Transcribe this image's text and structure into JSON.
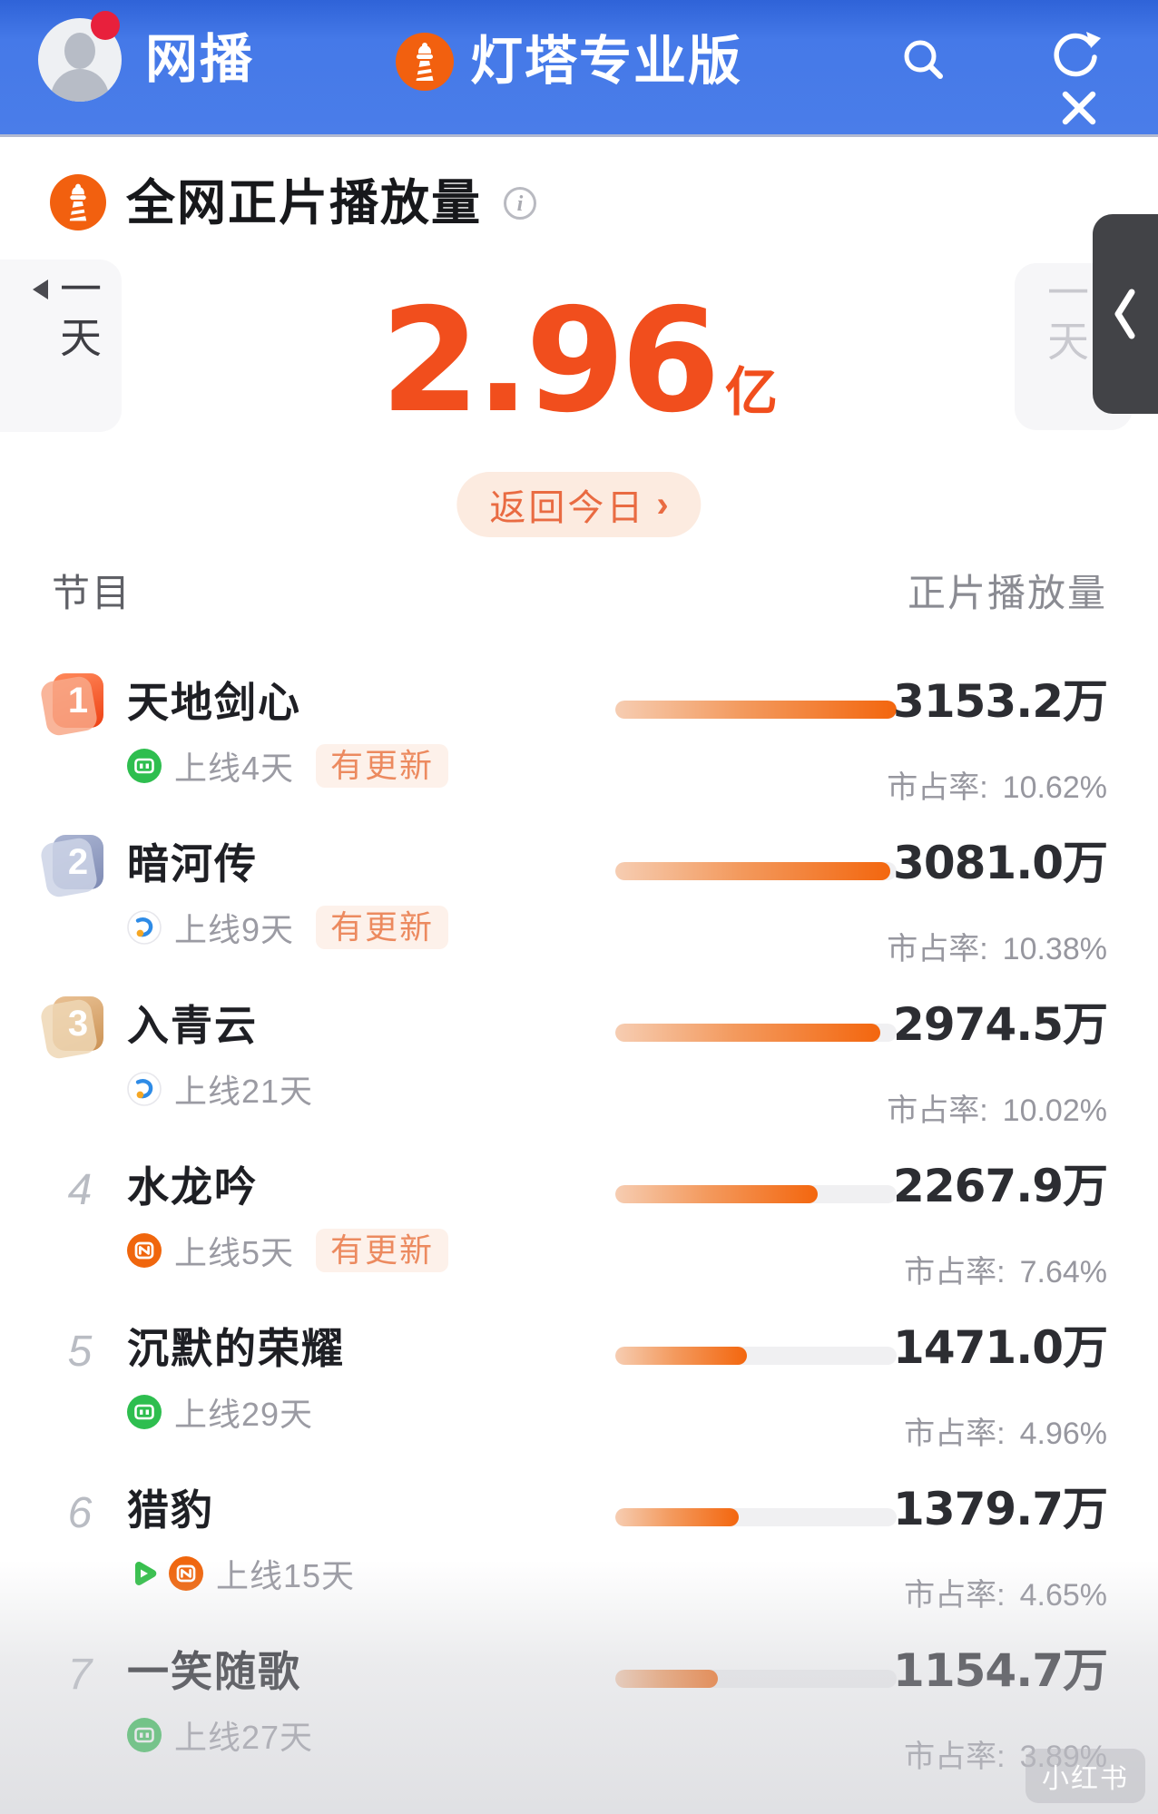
{
  "header": {
    "title": "网播",
    "brand": "灯塔专业版"
  },
  "overview": {
    "title": "全网正片播放量",
    "period_prev": "一天",
    "period_next": "一天",
    "total_value": "2.96",
    "total_unit": "亿",
    "back_today": "返回今日",
    "back_chevron": "›"
  },
  "list": {
    "col_program": "节目",
    "col_views": "正片播放量",
    "share_label": "市占率:",
    "updated_label": "有更新",
    "rows": [
      {
        "rank": "1",
        "badge": "orange",
        "title": "天地剑心",
        "platforms": [
          "green-tv"
        ],
        "online": "上线4天",
        "updated": true,
        "value": "3153.2万",
        "share": "10.62%",
        "fill_pct": 100
      },
      {
        "rank": "2",
        "badge": "slate",
        "title": "暗河传",
        "platforms": [
          "tencent-video"
        ],
        "online": "上线9天",
        "updated": true,
        "value": "3081.0万",
        "share": "10.38%",
        "fill_pct": 97.7
      },
      {
        "rank": "3",
        "badge": "bronze",
        "title": "入青云",
        "platforms": [
          "tencent-video"
        ],
        "online": "上线21天",
        "updated": false,
        "value": "2974.5万",
        "share": "10.02%",
        "fill_pct": 94.3
      },
      {
        "rank": "4",
        "badge": null,
        "title": "水龙吟",
        "platforms": [
          "mango-tv"
        ],
        "online": "上线5天",
        "updated": true,
        "value": "2267.9万",
        "share": "7.64%",
        "fill_pct": 71.9
      },
      {
        "rank": "5",
        "badge": null,
        "title": "沉默的荣耀",
        "platforms": [
          "green-tv"
        ],
        "online": "上线29天",
        "updated": false,
        "value": "1471.0万",
        "share": "4.96%",
        "fill_pct": 46.7
      },
      {
        "rank": "6",
        "badge": null,
        "title": "猎豹",
        "platforms": [
          "green-play",
          "mango-tv"
        ],
        "online": "上线15天",
        "updated": false,
        "value": "1379.7万",
        "share": "4.65%",
        "fill_pct": 43.8
      },
      {
        "rank": "7",
        "badge": null,
        "title": "一笑随歌",
        "platforms": [
          "green-tv"
        ],
        "online": "上线27天",
        "updated": false,
        "value": "1154.7万",
        "share": "3.89%",
        "fill_pct": 36.6
      }
    ]
  },
  "watermark": "小红书",
  "colors": {
    "header_blue": "#4579E8",
    "accent_orange": "#F14E1D",
    "bar_fill": "#F3660E",
    "bar_track": "#F0F0F2",
    "updated_tag_text": "#EC8A5F",
    "updated_tag_bg": "#FDF1EA"
  }
}
